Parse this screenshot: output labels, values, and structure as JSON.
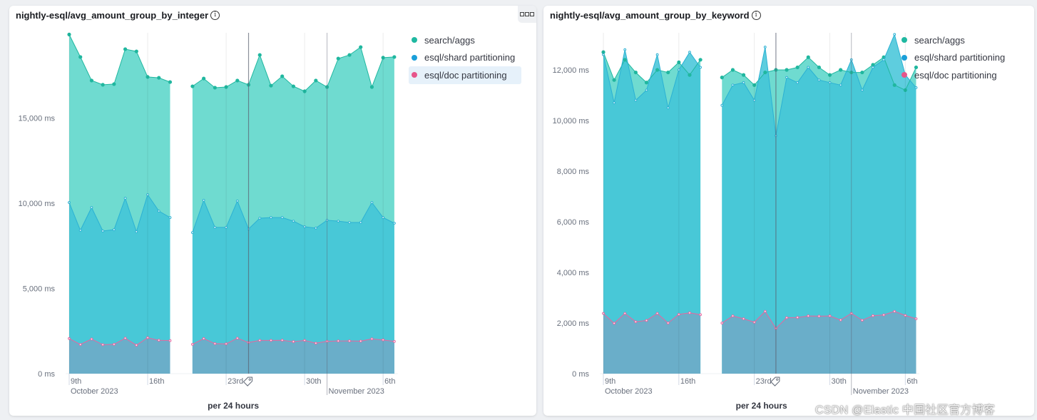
{
  "colors": {
    "search_aggs": "#54b399",
    "search_aggs_fill": "#6fdbd0",
    "search_aggs_line": "#20b79f",
    "esql_shard": "#2bb1d3",
    "esql_shard_fill": "#42c4d8",
    "esql_doc": "#e7669f",
    "esql_doc_fill": "#6aaec9",
    "legend_dot_search": "#1fb8a1",
    "legend_dot_shard": "#1a9fd9",
    "legend_dot_doc": "#e7558b"
  },
  "watermark": "CSDN @Elastic 中国社区官方博客",
  "chart_data": [
    {
      "type": "area",
      "title": "nightly-esql/avg_amount_group_by_integer",
      "xlabel": "per 24 hours",
      "ylabel": "",
      "ylim": [
        0,
        20000
      ],
      "yticks": [
        0,
        5000,
        10000,
        15000
      ],
      "ytick_labels": [
        "0 ms",
        "5,000 ms",
        "10,000 ms",
        "15,000 ms"
      ],
      "x_ticks": [
        {
          "label": "9th",
          "sublabel": "October 2023",
          "day": 0
        },
        {
          "label": "16th",
          "sublabel": "",
          "day": 7
        },
        {
          "label": "23rd",
          "sublabel": "",
          "day": 14
        },
        {
          "label": "30th",
          "sublabel": "",
          "day": 21
        },
        {
          "label": "6th",
          "sublabel": "",
          "day": 28
        }
      ],
      "x_month_markers": [
        {
          "label": "November 2023",
          "day": 23
        }
      ],
      "annotation_day": 16,
      "annotation_icon": "tag-icon",
      "legend_position": "right",
      "legend": [
        "search/aggs",
        "esql/shard partitioning",
        "esql/doc partitioning"
      ],
      "highlighted_legend": 2,
      "segments": [
        {
          "start_day": 0,
          "series": [
            {
              "name": "search/aggs",
              "values": [
                19900,
                18580,
                17200,
                16950,
                16990,
                19040,
                18910,
                17410,
                17360,
                17110
              ]
            },
            {
              "name": "esql/shard partitioning",
              "values": [
                10040,
                8410,
                9750,
                8370,
                8450,
                10290,
                8330,
                10500,
                9540,
                9160
              ]
            },
            {
              "name": "esql/doc partitioning",
              "values": [
                2060,
                1710,
                2030,
                1700,
                1720,
                2080,
                1670,
                2110,
                1960,
                1940
              ]
            }
          ]
        },
        {
          "start_day": 11,
          "series": [
            {
              "name": "search/aggs",
              "values": [
                16860,
                17320,
                16780,
                16820,
                17200,
                16950,
                18700,
                16900,
                17450,
                16860,
                16570,
                17200,
                16820,
                18490,
                18700,
                19160,
                16820,
                18540,
                18580
              ]
            },
            {
              "name": "esql/shard partitioning",
              "values": [
                8280,
                10170,
                8580,
                8580,
                10130,
                8490,
                9120,
                9160,
                9160,
                8950,
                8620,
                8540,
                9000,
                8950,
                8870,
                8870,
                10040,
                9160,
                8830
              ]
            },
            {
              "name": "esql/doc partitioning",
              "values": [
                1720,
                2060,
                1760,
                1750,
                2080,
                1830,
                1950,
                1950,
                1960,
                1880,
                1950,
                1790,
                1900,
                1920,
                1920,
                1910,
                2040,
                1980,
                1890
              ]
            }
          ]
        }
      ]
    },
    {
      "type": "area",
      "title": "nightly-esql/avg_amount_group_by_keyword",
      "xlabel": "per 24 hours",
      "ylabel": "",
      "ylim": [
        0,
        13500
      ],
      "yticks": [
        0,
        2000,
        4000,
        6000,
        8000,
        10000,
        12000
      ],
      "ytick_labels": [
        "0 ms",
        "2,000 ms",
        "4,000 ms",
        "6,000 ms",
        "8,000 ms",
        "10,000 ms",
        "12,000 ms"
      ],
      "x_ticks": [
        {
          "label": "9th",
          "sublabel": "October 2023",
          "day": 0
        },
        {
          "label": "16th",
          "sublabel": "",
          "day": 7
        },
        {
          "label": "23rd",
          "sublabel": "",
          "day": 14
        },
        {
          "label": "30th",
          "sublabel": "",
          "day": 21
        },
        {
          "label": "6th",
          "sublabel": "",
          "day": 28
        }
      ],
      "x_month_markers": [
        {
          "label": "November 2023",
          "day": 23
        }
      ],
      "annotation_day": 16,
      "annotation_icon": "tag-icon",
      "legend_position": "right",
      "legend": [
        "search/aggs",
        "esql/shard partitioning",
        "esql/doc partitioning"
      ],
      "highlighted_legend": -1,
      "segments": [
        {
          "start_day": 0,
          "series": [
            {
              "name": "search/aggs",
              "values": [
                12700,
                11600,
                12400,
                11900,
                11500,
                12000,
                11900,
                12300,
                11800,
                12400
              ]
            },
            {
              "name": "esql/shard partitioning",
              "values": [
                12600,
                10700,
                12800,
                10800,
                11200,
                12600,
                10500,
                12000,
                12700,
                12100
              ]
            },
            {
              "name": "esql/doc partitioning",
              "values": [
                2380,
                1990,
                2380,
                2050,
                2100,
                2380,
                2000,
                2340,
                2400,
                2330
              ]
            }
          ]
        },
        {
          "start_day": 11,
          "series": [
            {
              "name": "search/aggs",
              "values": [
                11700,
                12000,
                11800,
                11400,
                11900,
                12000,
                12000,
                12100,
                12500,
                12100,
                11800,
                12000,
                11900,
                11900,
                12200,
                12500,
                11400,
                11200,
                12100
              ]
            },
            {
              "name": "esql/shard partitioning",
              "values": [
                10600,
                11400,
                11500,
                10800,
                12900,
                9400,
                11700,
                11500,
                12100,
                11600,
                11500,
                11400,
                12400,
                11200,
                12100,
                12400,
                13400,
                11800,
                11300
              ]
            },
            {
              "name": "esql/doc partitioning",
              "values": [
                2000,
                2280,
                2170,
                2030,
                2460,
                1790,
                2210,
                2220,
                2280,
                2270,
                2280,
                2120,
                2380,
                2110,
                2290,
                2320,
                2460,
                2300,
                2170
              ]
            }
          ]
        }
      ]
    }
  ]
}
